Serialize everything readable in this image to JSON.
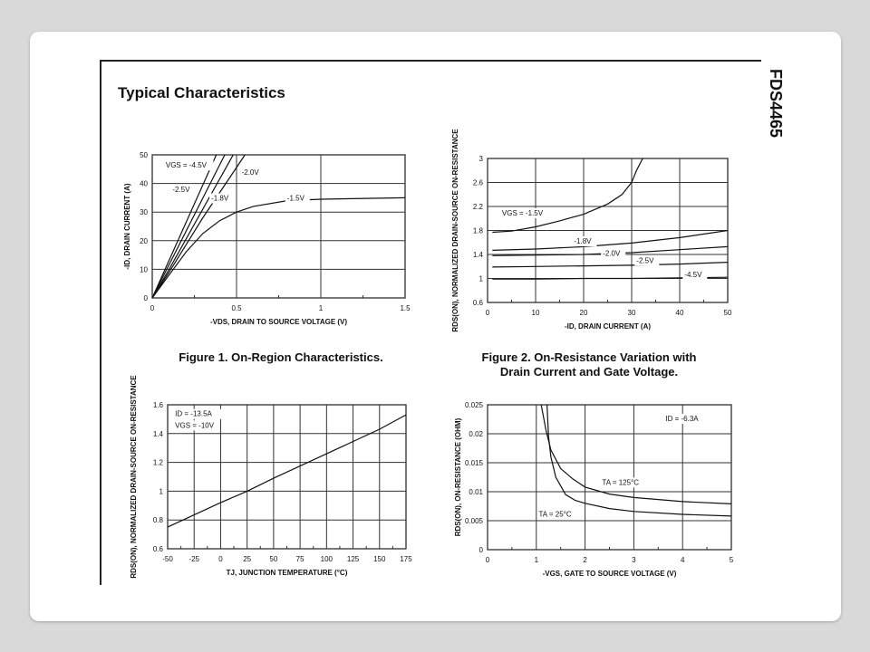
{
  "page": {
    "heading": "Typical Characteristics",
    "part_number": "FDS4465"
  },
  "captions": {
    "fig1": "Figure 1. On-Region Characteristics.",
    "fig2_line1": "Figure 2. On-Resistance Variation with",
    "fig2_line2": "Drain Current and Gate Voltage."
  },
  "chart_data": [
    {
      "type": "line",
      "xlabel": "-VDS, DRAIN TO SOURCE VOLTAGE (V)",
      "ylabel": "-ID, DRAIN CURRENT (A)",
      "xlim": [
        0,
        1.5
      ],
      "ylim": [
        0,
        50
      ],
      "xticks": [
        "0",
        "0.5",
        "1",
        "1.5"
      ],
      "xtick_values": [
        0,
        0.5,
        1,
        1.5
      ],
      "yticks": [
        "0",
        "10",
        "20",
        "30",
        "40",
        "50"
      ],
      "ytick_values": [
        0,
        10,
        20,
        30,
        40,
        50
      ],
      "grid": true,
      "series": [
        {
          "name": "VGS = -4.5V",
          "x": [
            0,
            0.38
          ],
          "y": [
            0,
            50
          ]
        },
        {
          "name": "-2.5V",
          "x": [
            0,
            0.43
          ],
          "y": [
            0,
            50
          ]
        },
        {
          "name": "-2.0V",
          "x": [
            0,
            0.1,
            0.48
          ],
          "y": [
            0,
            10,
            50
          ]
        },
        {
          "name": "-1.8V",
          "x": [
            0,
            0.1,
            0.3,
            0.55
          ],
          "y": [
            0,
            9,
            28,
            50
          ]
        },
        {
          "name": "-1.5V",
          "x": [
            0,
            0.1,
            0.2,
            0.3,
            0.4,
            0.5,
            0.6,
            0.8,
            1.0,
            1.5
          ],
          "y": [
            0,
            8,
            16,
            22.5,
            27,
            30,
            32,
            34,
            34.5,
            35
          ]
        }
      ],
      "annotations": [
        {
          "text": "VGS = -4.5V",
          "x": 0.08,
          "y": 45.5
        },
        {
          "text": "-2.0V",
          "x": 0.53,
          "y": 43
        },
        {
          "text": "-2.5V",
          "x": 0.12,
          "y": 37
        },
        {
          "text": "-1.8V",
          "x": 0.35,
          "y": 34
        },
        {
          "text": "-1.5V",
          "x": 0.8,
          "y": 34
        }
      ]
    },
    {
      "type": "line",
      "xlabel": "-ID, DRAIN CURRENT (A)",
      "ylabel": "RDS(ON), NORMALIZED DRAIN-SOURCE ON-RESISTANCE",
      "xlim": [
        0,
        50
      ],
      "ylim": [
        0.6,
        3
      ],
      "xticks": [
        "0",
        "10",
        "20",
        "30",
        "40",
        "50"
      ],
      "xtick_values": [
        0,
        10,
        20,
        30,
        40,
        50
      ],
      "yticks": [
        "0.6",
        "1",
        "1.4",
        "1.8",
        "2.2",
        "2.6",
        "3"
      ],
      "ytick_values": [
        0.6,
        1,
        1.4,
        1.8,
        2.2,
        2.6,
        3
      ],
      "grid": true,
      "series": [
        {
          "name": "VGS = -1.5V",
          "x": [
            1,
            5,
            10,
            15,
            20,
            25,
            28,
            30,
            31,
            32.3
          ],
          "y": [
            1.77,
            1.79,
            1.86,
            1.96,
            2.07,
            2.24,
            2.4,
            2.6,
            2.8,
            3.0
          ]
        },
        {
          "name": "-1.8V",
          "x": [
            1,
            10,
            20,
            30,
            40,
            50
          ],
          "y": [
            1.47,
            1.49,
            1.53,
            1.59,
            1.68,
            1.8
          ]
        },
        {
          "name": "-2.0V",
          "x": [
            1,
            10,
            20,
            30,
            40,
            50
          ],
          "y": [
            1.38,
            1.39,
            1.4,
            1.43,
            1.48,
            1.53
          ]
        },
        {
          "name": "-2.5V",
          "x": [
            1,
            10,
            20,
            30,
            40,
            50
          ],
          "y": [
            1.19,
            1.2,
            1.21,
            1.22,
            1.24,
            1.27
          ]
        },
        {
          "name": "-4.5V",
          "x": [
            1,
            10,
            20,
            30,
            40,
            50
          ],
          "y": [
            0.99,
            0.99,
            1.0,
            1.0,
            1.01,
            1.02
          ]
        }
      ],
      "annotations": [
        {
          "text": "VGS = -1.5V",
          "x": 3,
          "y": 2.05
        },
        {
          "text": "-1.8V",
          "x": 18,
          "y": 1.58
        },
        {
          "text": "-2.0V",
          "x": 24,
          "y": 1.38
        },
        {
          "text": "-2.5V",
          "x": 31,
          "y": 1.26
        },
        {
          "text": "-4.5V",
          "x": 41,
          "y": 1.02
        }
      ]
    },
    {
      "type": "line",
      "xlabel": "TJ, JUNCTION TEMPERATURE (°C)",
      "ylabel": "RDS(ON), NORMALIZED DRAIN-SOURCE ON-RESISTANCE",
      "xlim": [
        -50,
        175
      ],
      "ylim": [
        0.6,
        1.6
      ],
      "xticks": [
        "-50",
        "-25",
        "0",
        "25",
        "50",
        "75",
        "100",
        "125",
        "150",
        "175"
      ],
      "xtick_values": [
        -50,
        -25,
        0,
        25,
        50,
        75,
        100,
        125,
        150,
        175
      ],
      "yticks": [
        "0.6",
        "0.8",
        "1",
        "1.2",
        "1.4",
        "1.6"
      ],
      "ytick_values": [
        0.6,
        0.8,
        1,
        1.2,
        1.4,
        1.6
      ],
      "grid": true,
      "series": [
        {
          "x": [
            -50,
            0,
            25,
            50,
            100,
            150,
            175
          ],
          "y": [
            0.75,
            0.92,
            1.0,
            1.09,
            1.26,
            1.43,
            1.53
          ]
        }
      ],
      "annotations": [
        {
          "text": "ID = -13.5A",
          "x": -43,
          "y": 1.52
        },
        {
          "text": "VGS = -10V",
          "x": -43,
          "y": 1.44
        }
      ]
    },
    {
      "type": "line",
      "xlabel": "-VGS, GATE TO SOURCE VOLTAGE (V)",
      "ylabel": "RDS(ON), ON-RESISTANCE (OHM)",
      "xlim": [
        0,
        5
      ],
      "ylim": [
        0,
        0.025
      ],
      "xticks": [
        "0",
        "1",
        "2",
        "3",
        "4",
        "5"
      ],
      "xtick_values": [
        0,
        1,
        2,
        3,
        4,
        5
      ],
      "yticks": [
        "0",
        "0.005",
        "0.01",
        "0.015",
        "0.02",
        "0.025"
      ],
      "ytick_values": [
        0,
        0.005,
        0.01,
        0.015,
        0.02,
        0.025
      ],
      "grid": true,
      "series": [
        {
          "name": "TA = 125°C",
          "x": [
            1.1,
            1.2,
            1.3,
            1.5,
            1.75,
            2,
            2.5,
            3,
            4,
            5
          ],
          "y": [
            0.025,
            0.0205,
            0.0172,
            0.014,
            0.0122,
            0.0108,
            0.0096,
            0.009,
            0.0083,
            0.0079
          ]
        },
        {
          "name": "TA = 25°C",
          "x": [
            1.22,
            1.25,
            1.3,
            1.4,
            1.6,
            1.8,
            2,
            2.5,
            3,
            4,
            5
          ],
          "y": [
            0.025,
            0.0195,
            0.016,
            0.0125,
            0.0095,
            0.0085,
            0.008,
            0.0071,
            0.0066,
            0.0061,
            0.0058
          ]
        }
      ],
      "annotations": [
        {
          "text": "TA = 125°C",
          "x": 2.35,
          "y": 0.0112
        },
        {
          "text": "TA = 25°C",
          "x": 1.05,
          "y": 0.0057
        },
        {
          "text": "ID = -6.3A",
          "x": 3.65,
          "y": 0.0222
        }
      ]
    }
  ]
}
